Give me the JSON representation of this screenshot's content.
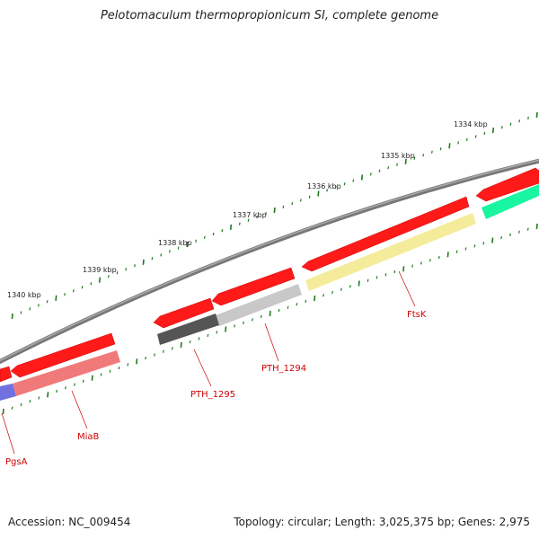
{
  "title": "Pelotomaculum thermopropionicum SI, complete genome",
  "footer": {
    "accession": "Accession: NC_009454",
    "summary": "Topology: circular; Length: 3,025,375 bp; Genes: 2,975"
  },
  "colors": {
    "backbone": "#888888",
    "tick": "#1e7d1e",
    "label": "#cc0000",
    "cds": "#ff1a1a"
  },
  "scale_ticks": [
    {
      "label": "1334 kbp",
      "name": "tick-label-1334"
    },
    {
      "label": "1335 kbp",
      "name": "tick-label-1335"
    },
    {
      "label": "1336 kbp",
      "name": "tick-label-1336"
    },
    {
      "label": "1337 kbp",
      "name": "tick-label-1337"
    },
    {
      "label": "1338 kbp",
      "name": "tick-label-1338"
    },
    {
      "label": "1339 kbp",
      "name": "tick-label-1339"
    },
    {
      "label": "1340 kbp",
      "name": "tick-label-1340"
    }
  ],
  "gene_labels": [
    {
      "label": "FtsK",
      "name": "gene-label-ftsk"
    },
    {
      "label": "PTH_1294",
      "name": "gene-label-pth1294"
    },
    {
      "label": "PTH_1295",
      "name": "gene-label-pth1295"
    },
    {
      "label": "MiaB",
      "name": "gene-label-miab"
    },
    {
      "label": "PgsA",
      "name": "gene-label-pgsa"
    }
  ]
}
